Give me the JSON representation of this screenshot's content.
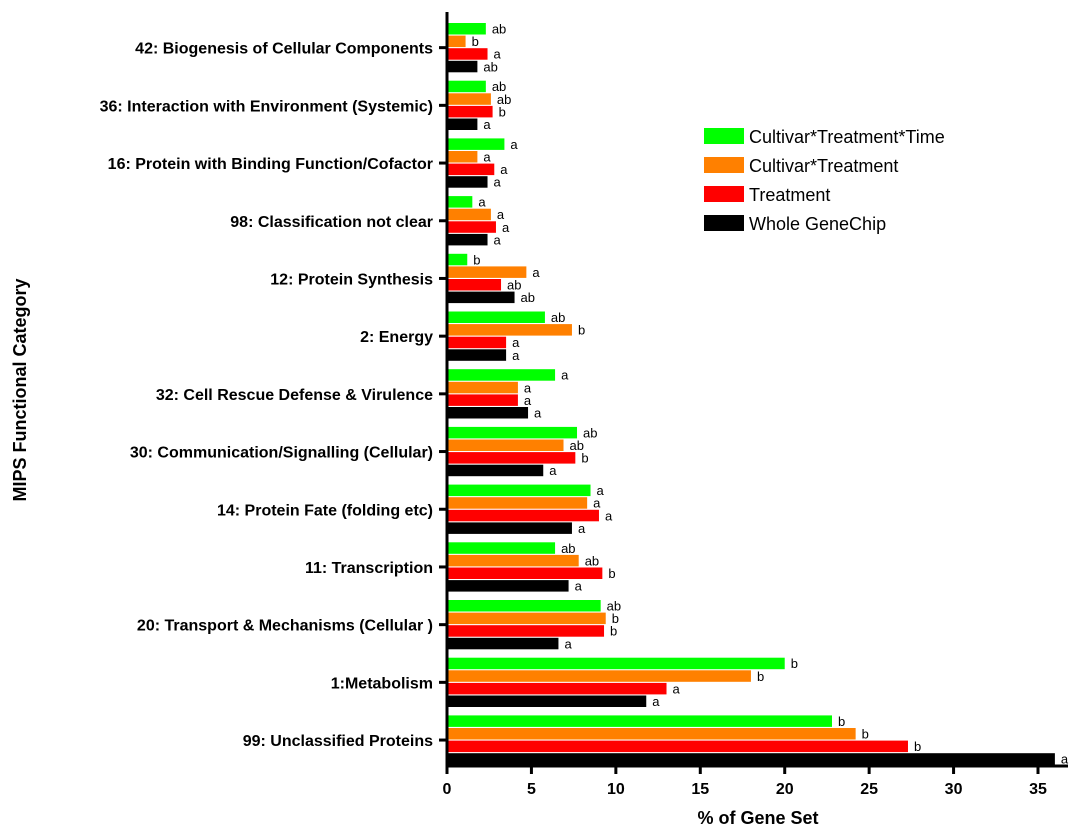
{
  "chart_data": {
    "type": "bar",
    "orientation": "horizontal",
    "xlabel": "% of Gene Set",
    "ylabel": "MIPS Functional Category",
    "xlim": [
      0,
      37
    ],
    "xticks": [
      0,
      5,
      10,
      15,
      20,
      25,
      30,
      35
    ],
    "grid": false,
    "legend_position": "top-right",
    "categories": [
      "42: Biogenesis of Cellular Components",
      "36: Interaction with Environment (Systemic)",
      "16: Protein with Binding Function/Cofactor",
      "98: Classification not clear",
      "12: Protein Synthesis",
      "2: Energy",
      "32: Cell Rescue Defense & Virulence",
      "30: Communication/Signalling (Cellular)",
      "14: Protein Fate (folding etc)",
      "11: Transcription",
      "20: Transport & Mechanisms (Cellular )",
      "1:Metabolism",
      "99: Unclassified Proteins"
    ],
    "series": [
      {
        "name": "Cultivar*Treatment*Time",
        "color": "#00ff00",
        "values": [
          2.3,
          2.3,
          3.4,
          1.5,
          1.2,
          5.8,
          6.4,
          7.7,
          8.5,
          6.4,
          9.1,
          20.0,
          22.8
        ],
        "labels": [
          "ab",
          "ab",
          "a",
          "a",
          "b",
          "ab",
          "a",
          "ab",
          "a",
          "ab",
          "ab",
          "b",
          "b"
        ]
      },
      {
        "name": "Cultivar*Treatment",
        "color": "#ff8000",
        "values": [
          1.1,
          2.6,
          1.8,
          2.6,
          4.7,
          7.4,
          4.2,
          6.9,
          8.3,
          7.8,
          9.4,
          18.0,
          24.2
        ],
        "labels": [
          "b",
          "ab",
          "a",
          "a",
          "a",
          "b",
          "a",
          "ab",
          "a",
          "ab",
          "b",
          "b",
          "b"
        ]
      },
      {
        "name": "Treatment",
        "color": "#ff0000",
        "values": [
          2.4,
          2.7,
          2.8,
          2.9,
          3.2,
          3.5,
          4.2,
          7.6,
          9.0,
          9.2,
          9.3,
          13.0,
          27.3
        ],
        "labels": [
          "a",
          "b",
          "a",
          "a",
          "ab",
          "a",
          "a",
          "b",
          "a",
          "b",
          "b",
          "a",
          "b"
        ]
      },
      {
        "name": "Whole GeneChip",
        "color": "#000000",
        "values": [
          1.8,
          1.8,
          2.4,
          2.4,
          4.0,
          3.5,
          4.8,
          5.7,
          7.4,
          7.2,
          6.6,
          11.8,
          36.0
        ],
        "labels": [
          "ab",
          "a",
          "a",
          "a",
          "ab",
          "a",
          "a",
          "a",
          "a",
          "a",
          "a",
          "a",
          "a"
        ]
      }
    ]
  }
}
